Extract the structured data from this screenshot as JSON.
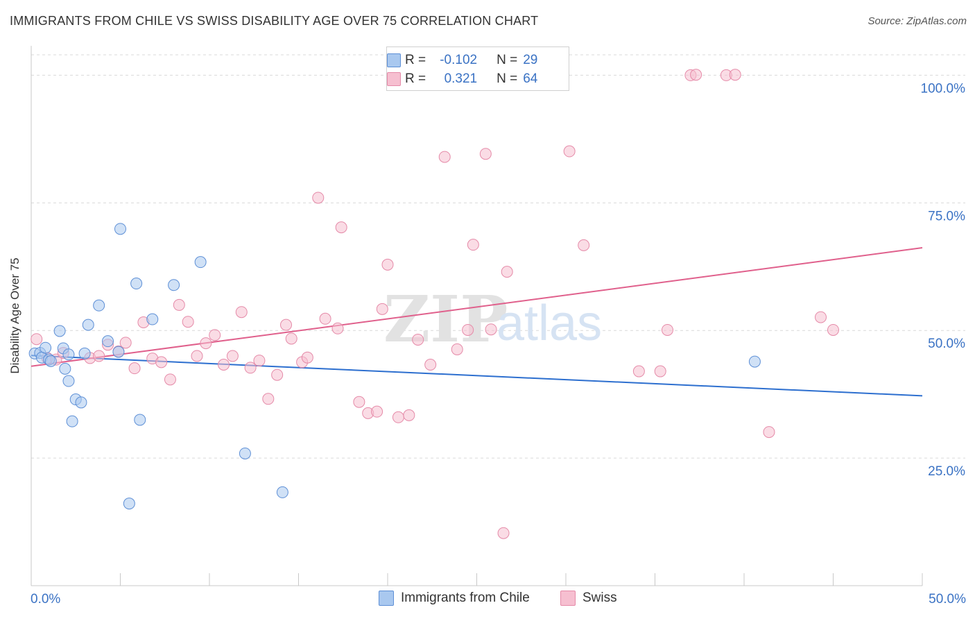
{
  "title": "IMMIGRANTS FROM CHILE VS SWISS DISABILITY AGE OVER 75 CORRELATION CHART",
  "source": "Source: ZipAtlas.com",
  "watermark": {
    "zip": "ZIP",
    "atlas": "atlas"
  },
  "legend": {
    "rows": [
      {
        "r_label": "R =",
        "r_value": "-0.102",
        "n_label": "N =",
        "n_value": "29"
      },
      {
        "r_label": "R =",
        "r_value": "0.321",
        "n_label": "N =",
        "n_value": "64"
      }
    ]
  },
  "colors": {
    "chile_fill": "#a9c8ef",
    "chile_stroke": "#5d8fd6",
    "chile_line": "#2d6fcf",
    "swiss_fill": "#f6bfd0",
    "swiss_stroke": "#e58aa8",
    "swiss_line": "#e0608c",
    "tick_label": "#3a72c4",
    "grid": "#d9d9d9"
  },
  "chart_data": {
    "type": "scatter",
    "xlabel": "",
    "ylabel": "Disability Age Over 75",
    "xlim": [
      0,
      50
    ],
    "ylim": [
      0,
      104
    ],
    "x_tick_labels": [
      "0.0%",
      "50.0%"
    ],
    "y_ticks": [
      25,
      50,
      75,
      100
    ],
    "y_tick_labels": [
      "25.0%",
      "50.0%",
      "75.0%",
      "100.0%"
    ],
    "grid": true,
    "legend_position": "top-center",
    "series": [
      {
        "name": "Immigrants from Chile",
        "trend": {
          "x": [
            0,
            50
          ],
          "y": [
            45.1,
            37.2
          ]
        },
        "points": [
          [
            0.2,
            45.5
          ],
          [
            0.5,
            45.6
          ],
          [
            0.6,
            44.7
          ],
          [
            0.8,
            46.6
          ],
          [
            1.0,
            44.3
          ],
          [
            1.1,
            44.0
          ],
          [
            1.6,
            49.9
          ],
          [
            1.8,
            46.5
          ],
          [
            1.9,
            42.5
          ],
          [
            2.1,
            45.3
          ],
          [
            2.1,
            40.1
          ],
          [
            2.3,
            32.2
          ],
          [
            2.5,
            36.5
          ],
          [
            2.8,
            35.9
          ],
          [
            3.0,
            45.5
          ],
          [
            3.2,
            51.1
          ],
          [
            3.8,
            54.9
          ],
          [
            4.3,
            47.9
          ],
          [
            4.9,
            45.8
          ],
          [
            5.0,
            69.9
          ],
          [
            5.5,
            16.1
          ],
          [
            5.9,
            59.2
          ],
          [
            6.1,
            32.5
          ],
          [
            6.8,
            52.2
          ],
          [
            8.0,
            58.9
          ],
          [
            9.5,
            63.4
          ],
          [
            12.0,
            25.9
          ],
          [
            14.1,
            18.3
          ],
          [
            40.6,
            43.9
          ]
        ]
      },
      {
        "name": "Swiss",
        "trend": {
          "x": [
            0,
            50
          ],
          "y": [
            43.0,
            66.2
          ]
        },
        "points": [
          [
            0.3,
            48.3
          ],
          [
            0.9,
            44.6
          ],
          [
            1.4,
            44.3
          ],
          [
            1.8,
            45.6
          ],
          [
            3.3,
            44.6
          ],
          [
            3.8,
            45.0
          ],
          [
            4.3,
            47.2
          ],
          [
            4.9,
            45.9
          ],
          [
            5.3,
            47.6
          ],
          [
            5.8,
            42.6
          ],
          [
            6.3,
            51.6
          ],
          [
            6.8,
            44.5
          ],
          [
            7.3,
            43.8
          ],
          [
            7.8,
            40.4
          ],
          [
            8.3,
            55.0
          ],
          [
            8.8,
            51.7
          ],
          [
            9.3,
            45.0
          ],
          [
            9.8,
            47.5
          ],
          [
            10.3,
            49.1
          ],
          [
            10.8,
            43.3
          ],
          [
            11.3,
            45.0
          ],
          [
            11.8,
            53.6
          ],
          [
            12.3,
            42.7
          ],
          [
            12.8,
            44.1
          ],
          [
            13.3,
            36.6
          ],
          [
            13.8,
            41.3
          ],
          [
            14.3,
            51.1
          ],
          [
            14.6,
            48.4
          ],
          [
            15.2,
            43.8
          ],
          [
            15.5,
            44.7
          ],
          [
            16.1,
            76.0
          ],
          [
            16.5,
            52.3
          ],
          [
            17.2,
            50.4
          ],
          [
            17.4,
            70.2
          ],
          [
            18.4,
            36.0
          ],
          [
            18.9,
            33.8
          ],
          [
            19.4,
            34.1
          ],
          [
            19.7,
            54.2
          ],
          [
            20.0,
            62.9
          ],
          [
            20.6,
            33.0
          ],
          [
            21.2,
            33.4
          ],
          [
            21.7,
            48.2
          ],
          [
            22.4,
            43.3
          ],
          [
            23.2,
            84.0
          ],
          [
            23.9,
            46.3
          ],
          [
            24.5,
            50.1
          ],
          [
            24.8,
            66.8
          ],
          [
            25.5,
            84.6
          ],
          [
            25.8,
            50.2
          ],
          [
            26.5,
            10.3
          ],
          [
            26.7,
            61.5
          ],
          [
            27.5,
            100.1
          ],
          [
            30.2,
            85.1
          ],
          [
            31.0,
            66.7
          ],
          [
            34.1,
            42.0
          ],
          [
            35.3,
            42.0
          ],
          [
            35.7,
            50.1
          ],
          [
            37.0,
            100.0
          ],
          [
            37.3,
            100.1
          ],
          [
            39.0,
            100.0
          ],
          [
            39.5,
            100.1
          ],
          [
            41.4,
            30.1
          ],
          [
            44.3,
            52.6
          ],
          [
            45.0,
            50.1
          ]
        ]
      }
    ]
  }
}
